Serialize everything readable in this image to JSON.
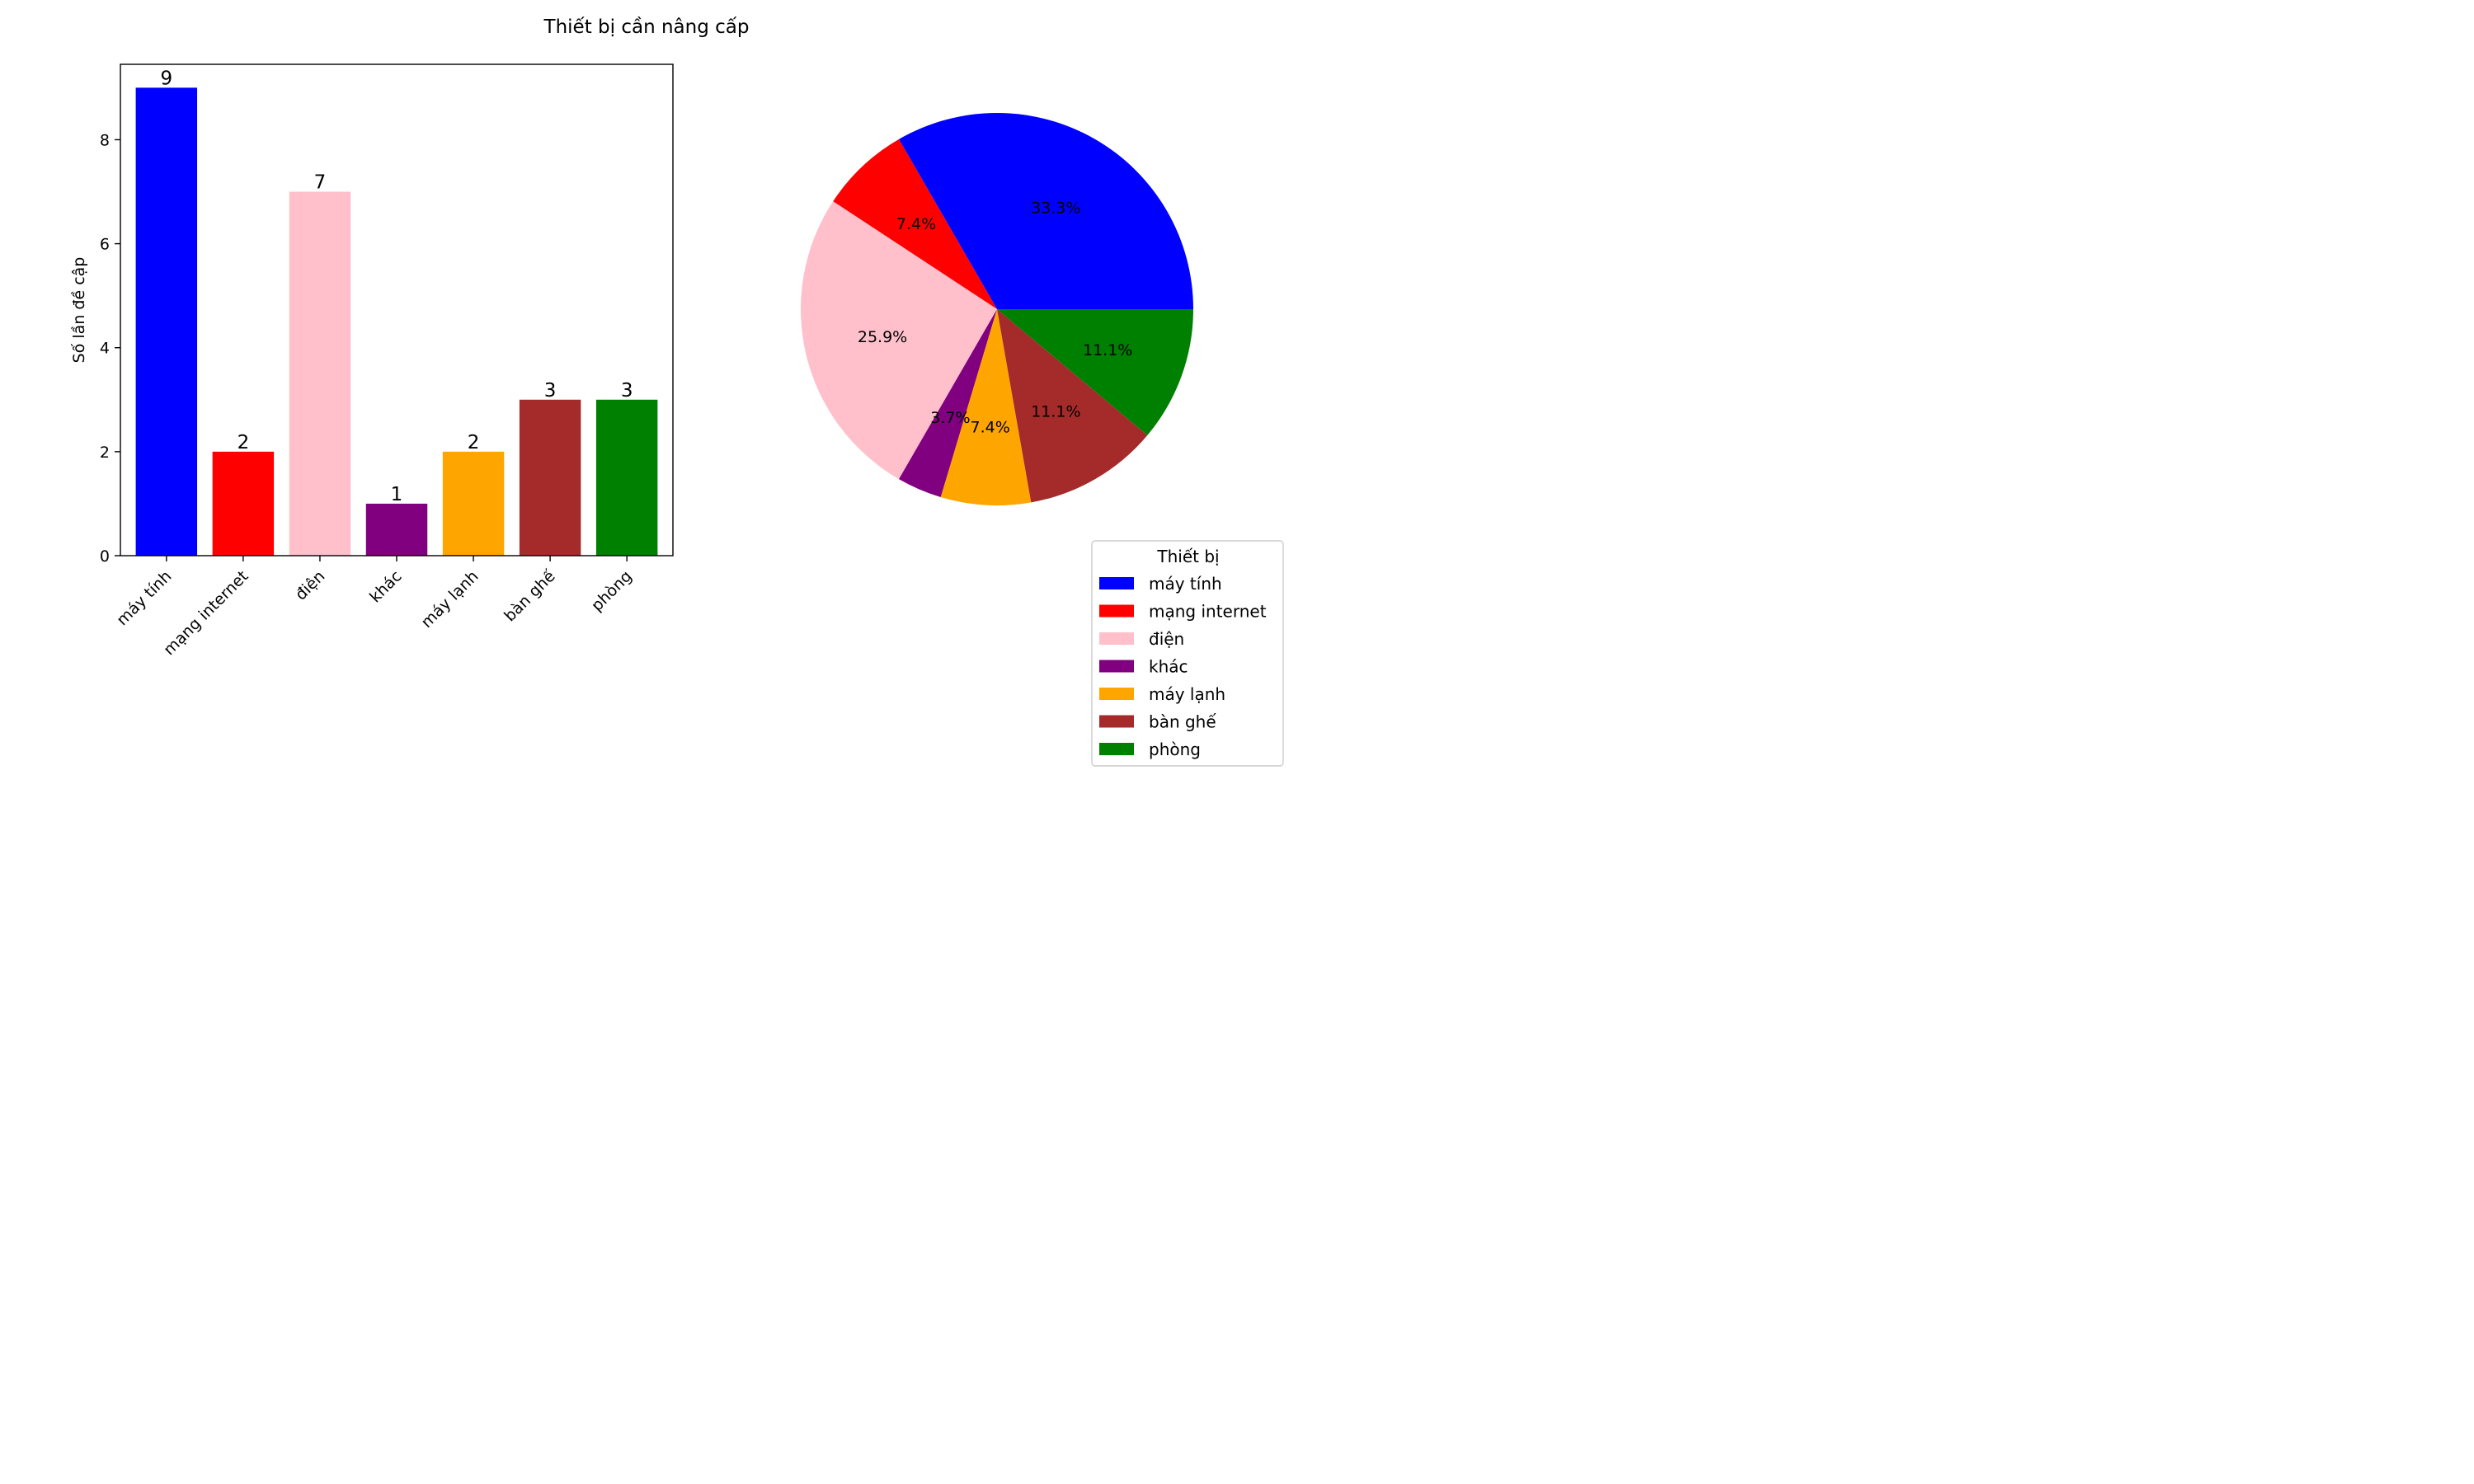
{
  "figure": {
    "suptitle": "Thiết bị cần nâng cấp"
  },
  "chart_data": [
    {
      "type": "bar",
      "categories": [
        "máy tính",
        "mạng internet",
        "điện",
        "khác",
        "máy lạnh",
        "bàn ghế",
        "phòng"
      ],
      "values": [
        9,
        2,
        7,
        1,
        2,
        3,
        3
      ],
      "colors": [
        "#0000ff",
        "#ff0000",
        "#ffc0cb",
        "#800080",
        "#ffa500",
        "#a52a2a",
        "#008000"
      ],
      "data_labels": [
        "9",
        "2",
        "7",
        "1",
        "2",
        "3",
        "3"
      ],
      "title": "",
      "xlabel": "",
      "ylabel": "Số lần đề cập",
      "ylim": [
        0,
        9.45
      ],
      "yticks": [
        0,
        2,
        4,
        6,
        8
      ],
      "ytick_labels": [
        "0",
        "2",
        "4",
        "6",
        "8"
      ],
      "grid": false
    },
    {
      "type": "pie",
      "labels": [
        "máy tính",
        "mạng internet",
        "điện",
        "khác",
        "máy lạnh",
        "bàn ghế",
        "phòng"
      ],
      "values": [
        9,
        2,
        7,
        1,
        2,
        3,
        3
      ],
      "percent_labels": [
        "33.3%",
        "7.4%",
        "25.9%",
        "3.7%",
        "7.4%",
        "11.1%",
        "11.1%"
      ],
      "colors": [
        "#0000ff",
        "#ff0000",
        "#ffc0cb",
        "#800080",
        "#ffa500",
        "#a52a2a",
        "#008000"
      ],
      "start_angle_deg": 0,
      "direction": "counterclockwise",
      "legend": {
        "title": "Thiết bị",
        "placement": "lower-right",
        "entries": [
          "máy tính",
          "mạng internet",
          "điện",
          "khác",
          "máy lạnh",
          "bàn ghế",
          "phòng"
        ]
      }
    }
  ]
}
